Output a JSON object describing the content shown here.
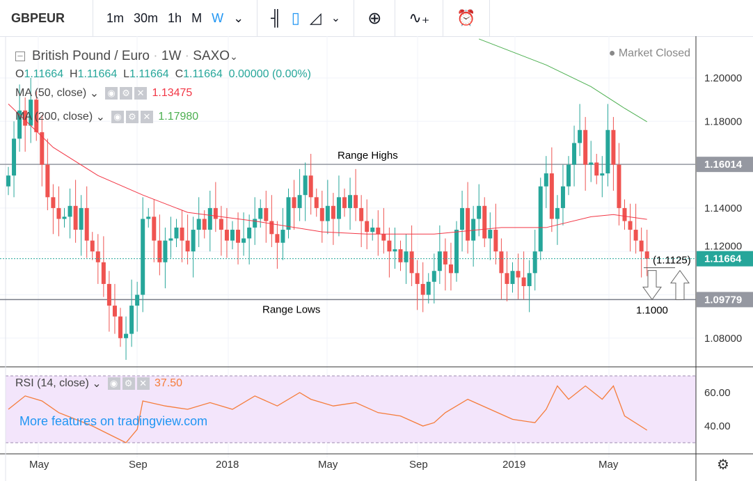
{
  "toolbar": {
    "symbol": "GBPEUR",
    "intervals": [
      "1m",
      "30m",
      "1h",
      "M",
      "W"
    ],
    "active_interval": "W",
    "icons": [
      "bar-chart-icon",
      "candles-icon",
      "area-chart-icon",
      "indicators-icon",
      "compare-icon",
      "alert-icon"
    ]
  },
  "legend": {
    "title": "British Pound / Euro",
    "sep": "·",
    "interval": "1W",
    "exchange": "SAXO",
    "status": "Market Closed",
    "o_label": "O",
    "o": "1.11664",
    "h_label": "H",
    "h": "1.11664",
    "l_label": "L",
    "l": "1.11664",
    "c_label": "C",
    "c": "1.11664",
    "change": "0.00000 (0.00%)"
  },
  "ma50": {
    "label": "MA (50, close)",
    "value": "1.13475",
    "color": "#f23645"
  },
  "ma200": {
    "label": "MA (200, close)",
    "value": "1.17980",
    "color": "#4caf50"
  },
  "rsi": {
    "label": "RSI (14, close)",
    "value": "37.50",
    "color": "#f57c3a",
    "ticks": [
      "60.00",
      "40.00"
    ]
  },
  "watermark": "More features on tradingview.com",
  "annotations": {
    "range_highs": "Range Highs",
    "range_lows": "Range Lows",
    "level_1125": "(1.1125)",
    "level_1100": "1.1000"
  },
  "price_axis": {
    "ticks": [
      "1.20000",
      "1.18000",
      "1.14000",
      "1.12000",
      "1.08000"
    ],
    "last_price": "1.11664",
    "range_high_label": "1.16014",
    "range_low_label": "1.09779",
    "up_color": "#26a69a",
    "down_color": "#ef5350"
  },
  "time_axis": [
    "May",
    "Sep",
    "2018",
    "May",
    "Sep",
    "2019",
    "May"
  ],
  "chart_data": {
    "type": "candlestick",
    "ylim": [
      1.07,
      1.22
    ],
    "closes": [
      1.155,
      1.172,
      1.185,
      1.178,
      1.19,
      1.175,
      1.16,
      1.145,
      1.14,
      1.135,
      1.136,
      1.141,
      1.13,
      1.14,
      1.125,
      1.12,
      1.115,
      1.105,
      1.095,
      1.09,
      1.08,
      1.082,
      1.095,
      1.1,
      1.135,
      1.136,
      1.125,
      1.115,
      1.125,
      1.126,
      1.131,
      1.125,
      1.12,
      1.13,
      1.135,
      1.13,
      1.14,
      1.135,
      1.13,
      1.125,
      1.13,
      1.124,
      1.126,
      1.131,
      1.135,
      1.14,
      1.134,
      1.128,
      1.124,
      1.13,
      1.145,
      1.14,
      1.146,
      1.155,
      1.145,
      1.14,
      1.134,
      1.141,
      1.135,
      1.145,
      1.14,
      1.146,
      1.14,
      1.134,
      1.129,
      1.131,
      1.128,
      1.125,
      1.12,
      1.121,
      1.115,
      1.12,
      1.11,
      1.105,
      1.1,
      1.106,
      1.111,
      1.12,
      1.114,
      1.11,
      1.13,
      1.14,
      1.125,
      1.135,
      1.141,
      1.126,
      1.13,
      1.12,
      1.11,
      1.105,
      1.111,
      1.108,
      1.104,
      1.11,
      1.12,
      1.15,
      1.156,
      1.135,
      1.14,
      1.15,
      1.16,
      1.17,
      1.176,
      1.16,
      1.161,
      1.155,
      1.156,
      1.176,
      1.16,
      1.14,
      1.134,
      1.13,
      1.125,
      1.12,
      1.1166
    ],
    "ma50": [
      [
        0,
        1.188
      ],
      [
        8,
        1.168
      ],
      [
        16,
        1.155
      ],
      [
        24,
        1.146
      ],
      [
        32,
        1.138
      ],
      [
        44,
        1.134
      ],
      [
        56,
        1.129
      ],
      [
        64,
        1.128
      ],
      [
        76,
        1.128
      ],
      [
        88,
        1.131
      ],
      [
        96,
        1.131
      ],
      [
        104,
        1.136
      ],
      [
        108,
        1.137
      ],
      [
        114,
        1.1348
      ]
    ],
    "ma200": [
      [
        84,
        1.218
      ],
      [
        96,
        1.206
      ],
      [
        104,
        1.196
      ],
      [
        110,
        1.186
      ],
      [
        114,
        1.1798
      ]
    ],
    "rsi": [
      [
        0,
        50
      ],
      [
        3,
        58
      ],
      [
        6,
        55
      ],
      [
        9,
        48
      ],
      [
        12,
        44
      ],
      [
        15,
        40
      ],
      [
        18,
        35
      ],
      [
        21,
        30
      ],
      [
        23,
        38
      ],
      [
        24,
        55
      ],
      [
        28,
        52
      ],
      [
        32,
        50
      ],
      [
        36,
        54
      ],
      [
        40,
        50
      ],
      [
        44,
        58
      ],
      [
        48,
        52
      ],
      [
        52,
        60
      ],
      [
        54,
        56
      ],
      [
        58,
        52
      ],
      [
        62,
        54
      ],
      [
        66,
        48
      ],
      [
        70,
        46
      ],
      [
        74,
        40
      ],
      [
        76,
        42
      ],
      [
        78,
        48
      ],
      [
        82,
        56
      ],
      [
        86,
        50
      ],
      [
        90,
        44
      ],
      [
        94,
        42
      ],
      [
        96,
        50
      ],
      [
        98,
        64
      ],
      [
        100,
        56
      ],
      [
        103,
        64
      ],
      [
        106,
        56
      ],
      [
        108,
        64
      ],
      [
        110,
        46
      ],
      [
        114,
        37.5
      ]
    ],
    "range_high": 1.16014,
    "range_low": 1.09779
  }
}
